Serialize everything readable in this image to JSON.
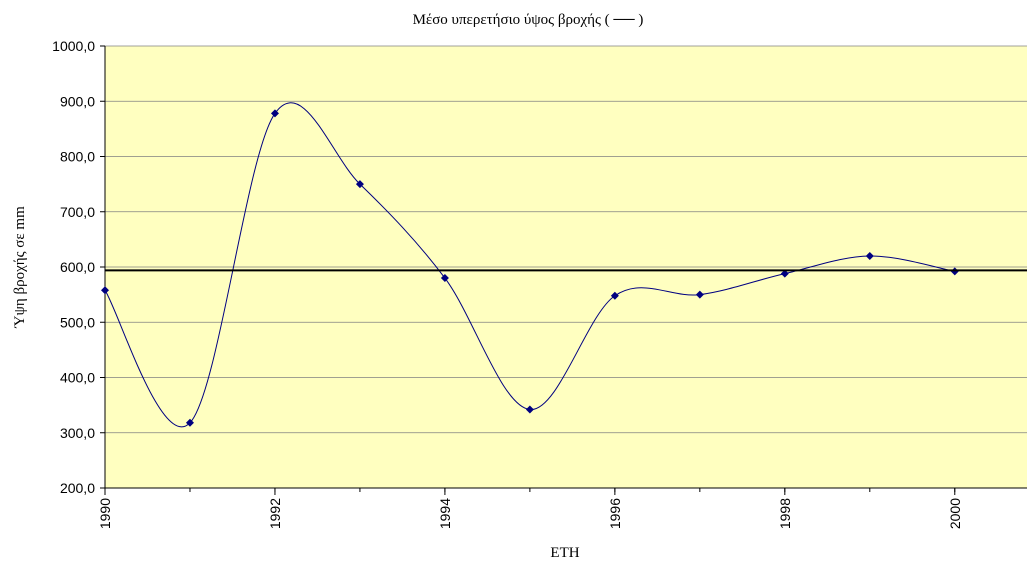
{
  "chart_data": {
    "type": "line",
    "title": "Μέσο υπερετήσιο ύψος βροχής ( ── )",
    "x_label": "ΕΤΗ",
    "y_label": "Ύψη βροχής σε mm",
    "x": [
      1990,
      1991,
      1992,
      1993,
      1994,
      1995,
      1996,
      1997,
      1998,
      1999,
      2000
    ],
    "series": [
      {
        "color": "#000080",
        "values": [
          558,
          318,
          878,
          750,
          580,
          342,
          548,
          550,
          588,
          620,
          592
        ]
      }
    ],
    "reference_line": 594,
    "reference_color": "#000000",
    "xlim": [
      1990,
      2000.85
    ],
    "xticks": [
      1990,
      1992,
      1994,
      1996,
      1998,
      2000
    ],
    "ylim": [
      200,
      1000
    ],
    "yticks": [
      {
        "value": 200,
        "label": "200,0"
      },
      {
        "value": 300,
        "label": "300,0"
      },
      {
        "value": 400,
        "label": "400,0"
      },
      {
        "value": 500,
        "label": "500,0"
      },
      {
        "value": 600,
        "label": "600,0"
      },
      {
        "value": 700,
        "label": "700,0"
      },
      {
        "value": 800,
        "label": "800,0"
      },
      {
        "value": 900,
        "label": "900,0"
      },
      {
        "value": 1000,
        "label": "1000,0"
      }
    ],
    "grid": true,
    "background": "#ffffc0"
  }
}
